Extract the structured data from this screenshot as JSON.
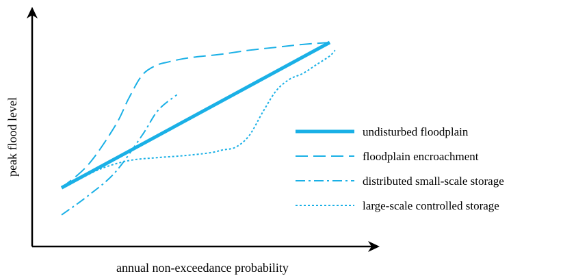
{
  "chart_data": {
    "type": "line",
    "title": "",
    "xlabel": "annual non-exceedance probability",
    "ylabel": "peak flood level",
    "xlim": [
      0,
      100
    ],
    "ylim": [
      0,
      100
    ],
    "grid": false,
    "ticks": false,
    "legend_position": "right",
    "color": "#1ab0e6",
    "series": [
      {
        "name": "undisturbed floodplain",
        "style": "solid",
        "x": [
          0,
          100
        ],
        "y": [
          25,
          100
        ]
      },
      {
        "name": "floodplain encroachment",
        "style": "dashed",
        "x": [
          0,
          10,
          20,
          25,
          30,
          35,
          40,
          45,
          50,
          60,
          70,
          80,
          90,
          100
        ],
        "y": [
          25,
          37,
          57,
          71,
          83,
          88,
          90,
          91.5,
          92.5,
          94,
          96,
          97.5,
          99,
          100
        ]
      },
      {
        "name": "distributed small-scale storage",
        "style": "dashdot",
        "x": [
          0,
          10,
          20,
          30,
          36,
          43
        ],
        "y": [
          11,
          21,
          33,
          52,
          65,
          73
        ]
      },
      {
        "name": "large-scale controlled storage",
        "style": "dotted",
        "x": [
          6,
          15,
          25,
          35,
          45,
          55,
          60,
          65,
          70,
          75,
          80,
          85,
          90,
          95,
          100,
          102
        ],
        "y": [
          29,
          35,
          39,
          40.5,
          41.5,
          43,
          44.5,
          46,
          52,
          64,
          75,
          81,
          84,
          88.5,
          93,
          96
        ]
      }
    ]
  }
}
